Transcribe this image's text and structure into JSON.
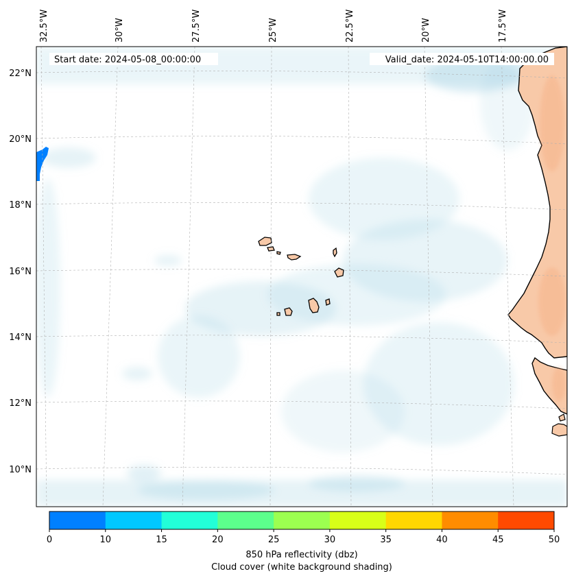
{
  "header": {
    "start_date": "Start date: 2024-05-08_00:00:00",
    "valid_date": "Valid_date: 2024-05-10T14:00:00.00"
  },
  "map": {
    "lon_labels": [
      "32.5°W",
      "30°W",
      "27.5°W",
      "25°W",
      "22.5°W",
      "20°W",
      "17.5°W"
    ],
    "lat_labels": [
      "22°N",
      "20°N",
      "18°N",
      "16°N",
      "14°N",
      "12°N",
      "10°N"
    ],
    "land_color": "#f8c9a8",
    "cloud_color": "#add8e6",
    "gridline_color": "#b0b0b0"
  },
  "colorbar": {
    "ticks": [
      "0",
      "10",
      "15",
      "20",
      "25",
      "30",
      "35",
      "40",
      "45",
      "50"
    ],
    "colors": [
      "#0080ff",
      "#00c8ff",
      "#22ffd8",
      "#5cff8c",
      "#9cff50",
      "#d8ff18",
      "#ffd700",
      "#ff8c00",
      "#ff4a00"
    ],
    "label_line1": "850 hPa reflectivity (dbz)",
    "label_line2": "Cloud cover (white background shading)"
  }
}
